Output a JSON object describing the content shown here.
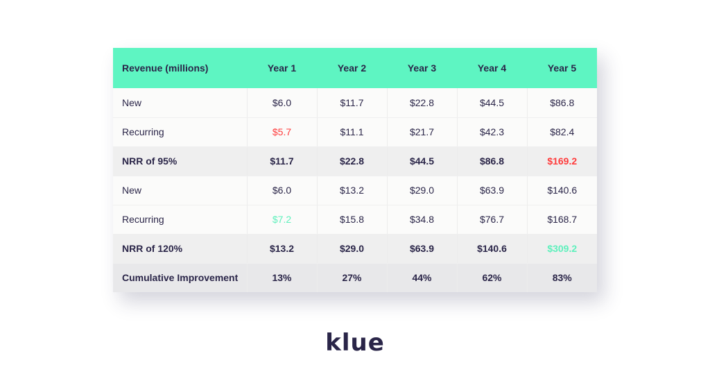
{
  "table": {
    "headers": [
      "Revenue (millions)",
      "Year 1",
      "Year 2",
      "Year 3",
      "Year 4",
      "Year 5"
    ],
    "rows": [
      {
        "label": "New",
        "cells": [
          "$6.0",
          "$11.7",
          "$22.8",
          "$44.5",
          "$86.8"
        ]
      },
      {
        "label": "Recurring",
        "cells": [
          "$5.7",
          "$11.1",
          "$21.7",
          "$42.3",
          "$82.4"
        ]
      },
      {
        "label": "NRR of 95%",
        "cells": [
          "$11.7",
          "$22.8",
          "$44.5",
          "$86.8",
          "$169.2"
        ]
      },
      {
        "label": "New",
        "cells": [
          "$6.0",
          "$13.2",
          "$29.0",
          "$63.9",
          "$140.6"
        ]
      },
      {
        "label": "Recurring",
        "cells": [
          "$7.2",
          "$15.8",
          "$34.8",
          "$76.7",
          "$168.7"
        ]
      },
      {
        "label": "NRR of 120%",
        "cells": [
          "$13.2",
          "$29.0",
          "$63.9",
          "$140.6",
          "$309.2"
        ]
      },
      {
        "label": "Cumulative Improvement",
        "cells": [
          "13%",
          "27%",
          "44%",
          "62%",
          "83%"
        ]
      }
    ]
  },
  "colors": {
    "header_bg": "#5ef5c2",
    "highlight_red": "#ff3b3b",
    "highlight_green": "#5ef0bc",
    "text": "#2a2548"
  },
  "logo": {
    "text": "klue"
  }
}
